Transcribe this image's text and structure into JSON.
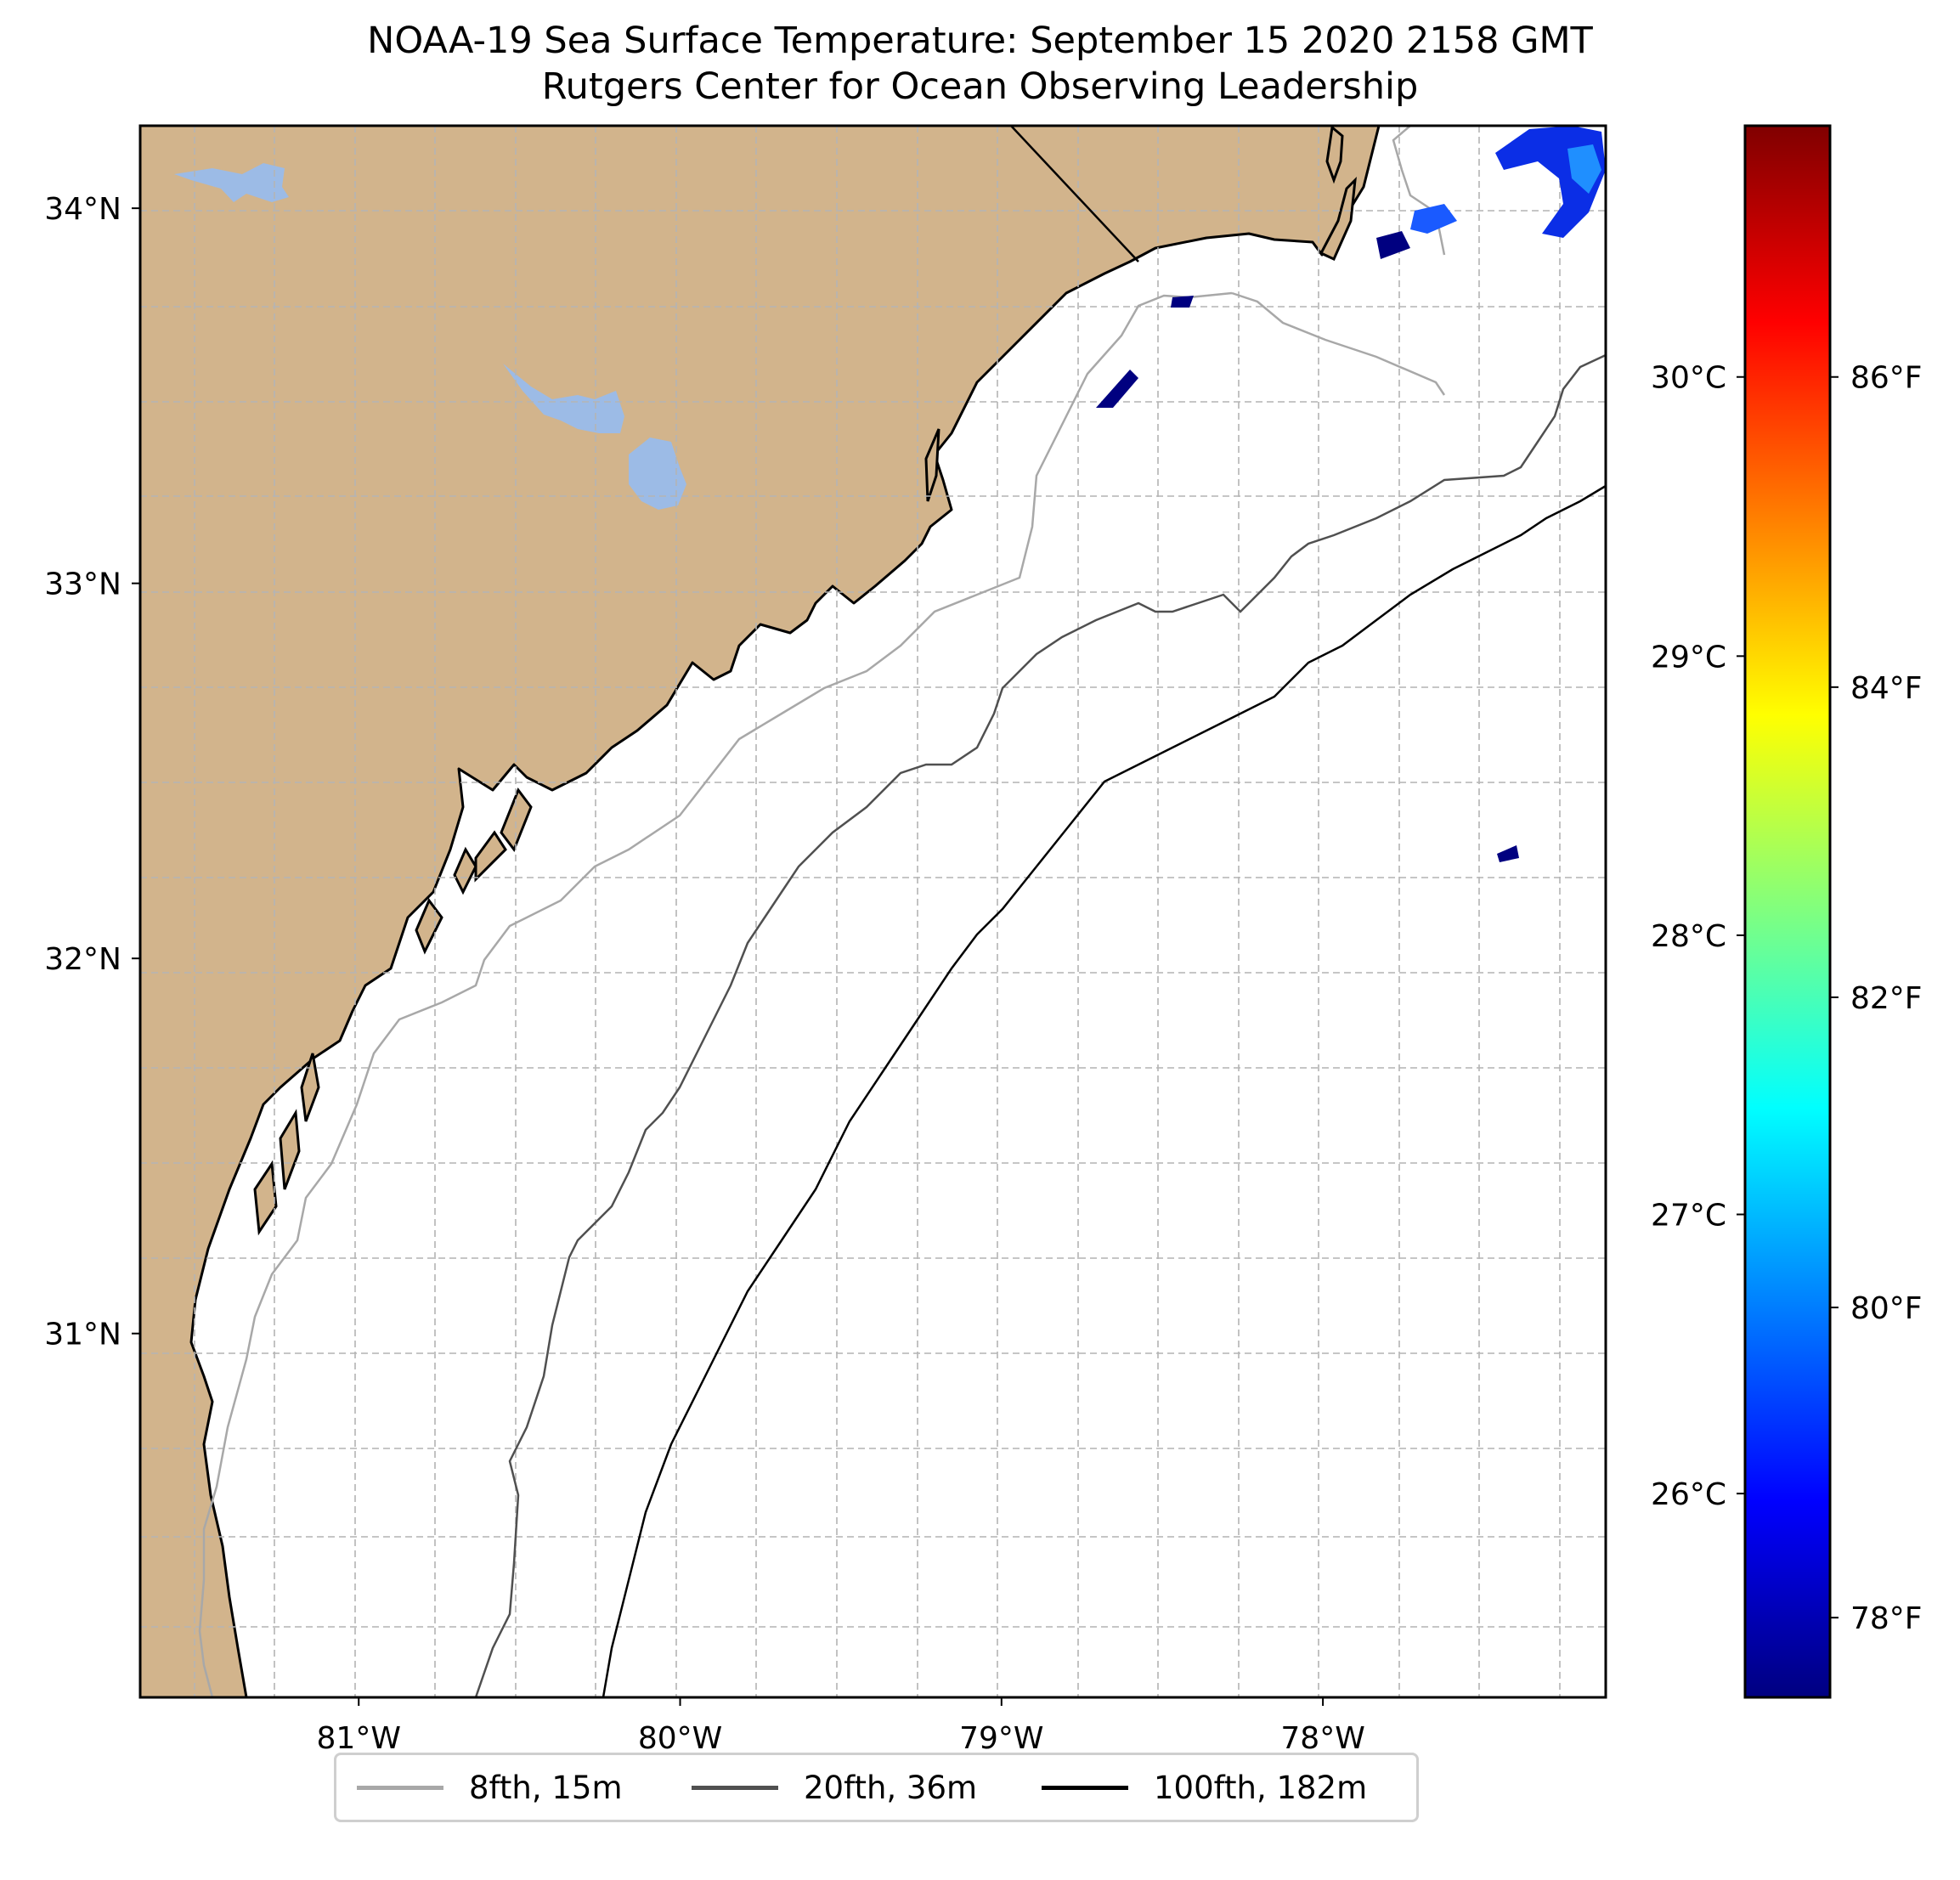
{
  "title": {
    "line1": "NOAA-19 Sea Surface Temperature: September 15 2020 2158 GMT",
    "line2": "Rutgers Center for Ocean Observing Leadership"
  },
  "map": {
    "lon_range": [
      -81.68,
      -77.12
    ],
    "lat_range": [
      30.03,
      34.22
    ],
    "lon_ticks": [
      {
        "lon": -81,
        "label": "81°W"
      },
      {
        "lon": -80,
        "label": "80°W"
      },
      {
        "lon": -79,
        "label": "79°W"
      },
      {
        "lon": -78,
        "label": "78°W"
      }
    ],
    "lat_ticks": [
      {
        "lat": 34,
        "label": "34°N"
      },
      {
        "lat": 33,
        "label": "33°N"
      },
      {
        "lat": 32,
        "label": "32°N"
      },
      {
        "lat": 31,
        "label": "31°N"
      }
    ],
    "gridlines": "dashed",
    "colors": {
      "land": "#d2b48c",
      "lakes": "#9cbbe6",
      "ocean": "#ffffff"
    }
  },
  "colorbar": {
    "colormap": "jet",
    "celsius_ticks": [
      {
        "value": 30,
        "label": "30°C"
      },
      {
        "value": 29,
        "label": "29°C"
      },
      {
        "value": 28,
        "label": "28°C"
      },
      {
        "value": 27,
        "label": "27°C"
      },
      {
        "value": 26,
        "label": "26°C"
      }
    ],
    "fahrenheit_ticks": [
      {
        "value": 86,
        "label": "86°F"
      },
      {
        "value": 84,
        "label": "84°F"
      },
      {
        "value": 82,
        "label": "82°F"
      },
      {
        "value": 80,
        "label": "80°F"
      },
      {
        "value": 78,
        "label": "78°F"
      }
    ]
  },
  "legend": {
    "placement": "bottom-center",
    "items": [
      {
        "label": "8fth, 15m",
        "color": "#a8a8a8"
      },
      {
        "label": "20fth, 36m",
        "color": "#505050"
      },
      {
        "label": "100fth, 182m",
        "color": "#000000"
      }
    ]
  }
}
